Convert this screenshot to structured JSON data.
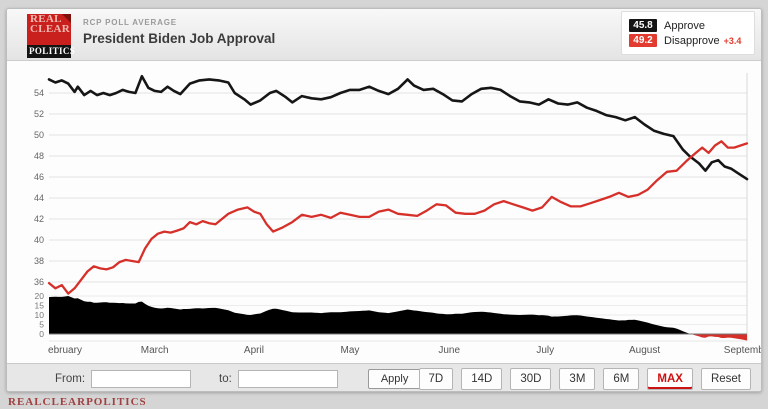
{
  "header": {
    "logo": {
      "line1": "REAL",
      "line2": "CLEAR",
      "line3": "POLITICS"
    },
    "kicker": "RCP POLL AVERAGE",
    "title": "President Biden Job Approval",
    "legend": [
      {
        "value": "45.8",
        "label": "Approve"
      },
      {
        "value": "49.2",
        "label": "Disapprove",
        "change": "+3.4"
      }
    ]
  },
  "chart_data": {
    "type": "line",
    "title": "President Biden Job Approval",
    "x_axis": {
      "unit": "days_since_feb_1",
      "max_day": 218,
      "months": [
        {
          "label": "ebruary",
          "day": 0
        },
        {
          "label": "March",
          "day": 28
        },
        {
          "label": "April",
          "day": 59
        },
        {
          "label": "May",
          "day": 89
        },
        {
          "label": "June",
          "day": 120
        },
        {
          "label": "July",
          "day": 150
        },
        {
          "label": "August",
          "day": 181
        },
        {
          "label": "Septemb",
          "day": 212
        }
      ]
    },
    "main_axis": {
      "ticks": [
        54,
        52,
        50,
        48,
        46,
        44,
        42,
        40,
        38,
        36
      ],
      "range": [
        35,
        56
      ]
    },
    "spread_axis": {
      "ticks": [
        20,
        15,
        10,
        5,
        0
      ],
      "range": [
        -4,
        22
      ]
    },
    "series": [
      {
        "name": "Approve",
        "color": "#161616",
        "final_value": 45.8,
        "points": [
          [
            0,
            55.3
          ],
          [
            2,
            55.0
          ],
          [
            4,
            55.2
          ],
          [
            6,
            54.9
          ],
          [
            8,
            54.1
          ],
          [
            9,
            54.6
          ],
          [
            11,
            53.8
          ],
          [
            13,
            54.2
          ],
          [
            15,
            53.8
          ],
          [
            17,
            54.0
          ],
          [
            19,
            53.8
          ],
          [
            21,
            54.0
          ],
          [
            23,
            54.3
          ],
          [
            25,
            54.1
          ],
          [
            27,
            54.0
          ],
          [
            29,
            55.6
          ],
          [
            31,
            54.5
          ],
          [
            33,
            54.2
          ],
          [
            35,
            54.1
          ],
          [
            37,
            54.6
          ],
          [
            39,
            54.2
          ],
          [
            41,
            53.9
          ],
          [
            44,
            54.9
          ],
          [
            47,
            55.2
          ],
          [
            50,
            55.3
          ],
          [
            53,
            55.2
          ],
          [
            56,
            55.0
          ],
          [
            58,
            54.0
          ],
          [
            61,
            53.4
          ],
          [
            63,
            52.9
          ],
          [
            66,
            53.3
          ],
          [
            69,
            54.0
          ],
          [
            71,
            54.2
          ],
          [
            74,
            53.6
          ],
          [
            76,
            53.1
          ],
          [
            79,
            53.7
          ],
          [
            82,
            53.5
          ],
          [
            85,
            53.4
          ],
          [
            88,
            53.6
          ],
          [
            91,
            54.0
          ],
          [
            94,
            54.3
          ],
          [
            97,
            54.3
          ],
          [
            100,
            54.6
          ],
          [
            103,
            54.2
          ],
          [
            106,
            53.9
          ],
          [
            109,
            54.4
          ],
          [
            112,
            55.3
          ],
          [
            114,
            54.7
          ],
          [
            117,
            54.3
          ],
          [
            120,
            54.4
          ],
          [
            123,
            53.9
          ],
          [
            126,
            53.3
          ],
          [
            129,
            53.2
          ],
          [
            132,
            53.9
          ],
          [
            135,
            54.4
          ],
          [
            138,
            54.5
          ],
          [
            141,
            54.3
          ],
          [
            144,
            53.7
          ],
          [
            147,
            53.2
          ],
          [
            150,
            53.1
          ],
          [
            153,
            52.9
          ],
          [
            156,
            53.4
          ],
          [
            159,
            53.0
          ],
          [
            162,
            52.9
          ],
          [
            165,
            53.1
          ],
          [
            168,
            52.6
          ],
          [
            171,
            52.3
          ],
          [
            174,
            51.9
          ],
          [
            177,
            51.7
          ],
          [
            180,
            51.4
          ],
          [
            183,
            51.7
          ],
          [
            186,
            51.0
          ],
          [
            189,
            50.4
          ],
          [
            192,
            50.1
          ],
          [
            195,
            49.9
          ],
          [
            198,
            48.6
          ],
          [
            200,
            48.0
          ],
          [
            203,
            47.3
          ],
          [
            205,
            46.6
          ],
          [
            207,
            47.4
          ],
          [
            209,
            47.6
          ],
          [
            211,
            47.0
          ],
          [
            213,
            46.8
          ],
          [
            215,
            46.4
          ],
          [
            218,
            45.8
          ]
        ]
      },
      {
        "name": "Disapprove",
        "color": "#d6302a",
        "final_value": 49.2,
        "change": "+3.4",
        "points": [
          [
            0,
            35.9
          ],
          [
            2,
            35.4
          ],
          [
            4,
            35.7
          ],
          [
            6,
            34.9
          ],
          [
            8,
            35.4
          ],
          [
            10,
            36.2
          ],
          [
            12,
            37.0
          ],
          [
            14,
            37.5
          ],
          [
            16,
            37.3
          ],
          [
            18,
            37.2
          ],
          [
            20,
            37.4
          ],
          [
            22,
            37.9
          ],
          [
            24,
            38.1
          ],
          [
            26,
            38.0
          ],
          [
            28,
            37.9
          ],
          [
            30,
            39.2
          ],
          [
            32,
            40.1
          ],
          [
            34,
            40.6
          ],
          [
            36,
            40.8
          ],
          [
            38,
            40.7
          ],
          [
            40,
            40.9
          ],
          [
            42,
            41.1
          ],
          [
            44,
            41.7
          ],
          [
            46,
            41.5
          ],
          [
            48,
            41.8
          ],
          [
            50,
            41.6
          ],
          [
            52,
            41.5
          ],
          [
            54,
            42.0
          ],
          [
            56,
            42.5
          ],
          [
            59,
            42.9
          ],
          [
            62,
            43.1
          ],
          [
            64,
            42.7
          ],
          [
            66,
            42.5
          ],
          [
            68,
            41.5
          ],
          [
            70,
            40.8
          ],
          [
            73,
            41.2
          ],
          [
            76,
            41.7
          ],
          [
            79,
            42.4
          ],
          [
            82,
            42.2
          ],
          [
            85,
            42.4
          ],
          [
            88,
            42.1
          ],
          [
            91,
            42.6
          ],
          [
            94,
            42.4
          ],
          [
            97,
            42.2
          ],
          [
            100,
            42.2
          ],
          [
            103,
            42.7
          ],
          [
            106,
            42.9
          ],
          [
            109,
            42.5
          ],
          [
            112,
            42.4
          ],
          [
            115,
            42.3
          ],
          [
            118,
            42.8
          ],
          [
            121,
            43.4
          ],
          [
            124,
            43.3
          ],
          [
            127,
            42.6
          ],
          [
            130,
            42.5
          ],
          [
            133,
            42.5
          ],
          [
            136,
            42.8
          ],
          [
            139,
            43.4
          ],
          [
            142,
            43.7
          ],
          [
            145,
            43.4
          ],
          [
            148,
            43.1
          ],
          [
            151,
            42.8
          ],
          [
            154,
            43.1
          ],
          [
            157,
            44.1
          ],
          [
            160,
            43.6
          ],
          [
            163,
            43.2
          ],
          [
            166,
            43.2
          ],
          [
            169,
            43.5
          ],
          [
            172,
            43.8
          ],
          [
            175,
            44.1
          ],
          [
            178,
            44.5
          ],
          [
            181,
            44.1
          ],
          [
            184,
            44.3
          ],
          [
            187,
            44.8
          ],
          [
            190,
            45.7
          ],
          [
            193,
            46.5
          ],
          [
            196,
            46.6
          ],
          [
            199,
            47.5
          ],
          [
            202,
            48.3
          ],
          [
            204,
            48.8
          ],
          [
            206,
            48.3
          ],
          [
            208,
            49.0
          ],
          [
            210,
            49.4
          ],
          [
            212,
            48.8
          ],
          [
            214,
            48.8
          ],
          [
            216,
            49.0
          ],
          [
            218,
            49.2
          ]
        ]
      }
    ],
    "spread": {
      "name": "Spread (Approve minus Disapprove)",
      "positive_color": "#000000",
      "negative_color": "#d6302a",
      "derived_from": "series"
    }
  },
  "controls": {
    "from_label": "From:",
    "to_label": "to:",
    "from_value": "",
    "to_value": "",
    "apply_label": "Apply",
    "range_buttons": [
      {
        "label": "7D"
      },
      {
        "label": "14D"
      },
      {
        "label": "30D"
      },
      {
        "label": "3M"
      },
      {
        "label": "6M"
      },
      {
        "label": "MAX"
      },
      {
        "label": "Reset"
      }
    ],
    "active_range": "MAX"
  },
  "footer": {
    "brand": "REALCLEARPOLITICS"
  }
}
